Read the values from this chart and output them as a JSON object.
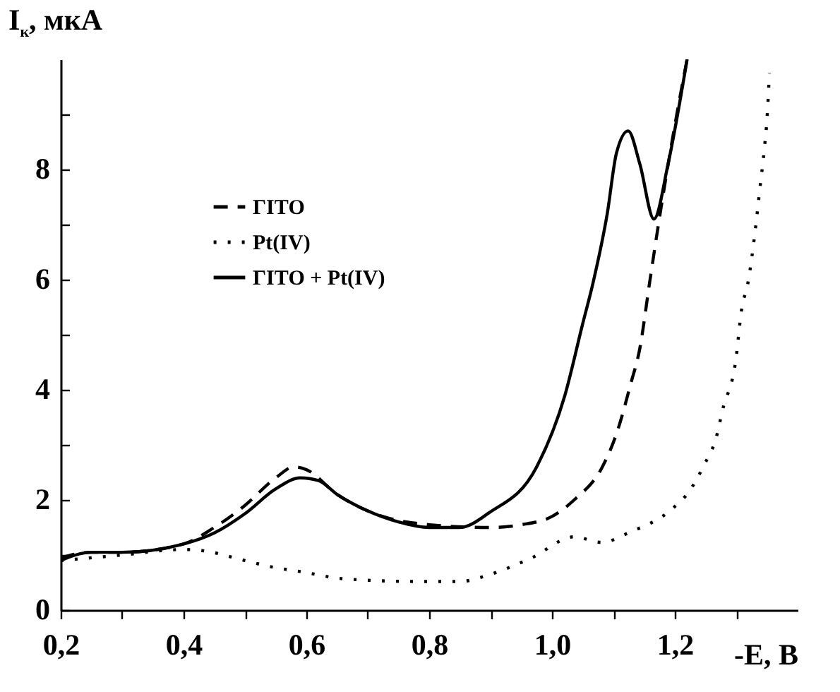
{
  "chart_data": {
    "type": "line",
    "xlabel": "-E, B",
    "ylabel": "I$_{к}$, мкА",
    "xlim": [
      0.2,
      1.4
    ],
    "ylim": [
      0,
      10
    ],
    "xticks": [
      {
        "value": 0.2,
        "label": "0,2"
      },
      {
        "value": 0.3,
        "label": null
      },
      {
        "value": 0.4,
        "label": "0,4"
      },
      {
        "value": 0.5,
        "label": null
      },
      {
        "value": 0.6,
        "label": "0,6"
      },
      {
        "value": 0.7,
        "label": null
      },
      {
        "value": 0.8,
        "label": "0,8"
      },
      {
        "value": 0.9,
        "label": null
      },
      {
        "value": 1.0,
        "label": "1,0"
      },
      {
        "value": 1.1,
        "label": null
      },
      {
        "value": 1.2,
        "label": "1,2"
      },
      {
        "value": 1.3,
        "label": null
      }
    ],
    "yticks": [
      0,
      {
        "value": 1,
        "label": null
      },
      2,
      {
        "value": 3,
        "label": null
      },
      4,
      {
        "value": 5,
        "label": null
      },
      6,
      {
        "value": 7,
        "label": null
      },
      8,
      {
        "value": 9,
        "label": null
      }
    ],
    "legend": "top left",
    "grid": false,
    "marker": "none",
    "series": [
      {
        "name": "ГІТО",
        "color": "#000000",
        "line_style": "dashed",
        "x": [
          0.2,
          0.25,
          0.3,
          0.4,
          0.45,
          0.5,
          0.55,
          0.58,
          0.6,
          0.65,
          0.7,
          0.8,
          0.9,
          0.95,
          1.0,
          1.036,
          1.082,
          1.105,
          1.128,
          1.143,
          1.159,
          1.174,
          1.2,
          1.22
        ],
        "values": [
          0.95,
          1.05,
          1.05,
          1.2,
          1.5,
          1.9,
          2.4,
          2.6,
          2.55,
          2.1,
          1.8,
          1.55,
          1.5,
          1.55,
          1.7,
          2.0,
          2.6,
          3.2,
          4.1,
          4.75,
          5.95,
          7.05,
          8.8,
          10.0
        ]
      },
      {
        "name": "Pt(IV)",
        "color": "#000000",
        "line_style": "dotted",
        "x": [
          0.2,
          0.3,
          0.4,
          0.43,
          0.5,
          0.545,
          0.59,
          0.66,
          0.78,
          0.85,
          0.9,
          0.967,
          1.036,
          1.08,
          1.128,
          1.197,
          1.223,
          1.246,
          1.269,
          1.277,
          1.3,
          1.308,
          1.32,
          1.331,
          1.338,
          1.346,
          1.35,
          1.354
        ],
        "values": [
          0.9,
          1.0,
          1.1,
          1.08,
          0.9,
          0.78,
          0.7,
          0.57,
          0.52,
          0.52,
          0.65,
          0.95,
          1.33,
          1.23,
          1.42,
          1.85,
          2.15,
          2.6,
          3.2,
          3.6,
          4.6,
          5.4,
          6.0,
          6.9,
          7.6,
          8.4,
          8.9,
          9.75
        ]
      },
      {
        "name": "ГІТО + Pt(IV)",
        "color": "#000000",
        "line_style": "solid",
        "x": [
          0.2,
          0.25,
          0.3,
          0.4,
          0.45,
          0.5,
          0.55,
          0.59,
          0.62,
          0.65,
          0.7,
          0.75,
          0.8,
          0.85,
          0.898,
          0.975,
          1.021,
          1.05,
          1.067,
          1.09,
          1.105,
          1.124,
          1.143,
          1.166,
          1.189,
          1.22
        ],
        "values": [
          0.9,
          1.05,
          1.05,
          1.2,
          1.4,
          1.75,
          2.2,
          2.4,
          2.35,
          2.1,
          1.8,
          1.6,
          1.5,
          1.5,
          1.77,
          2.6,
          3.9,
          5.2,
          5.95,
          7.2,
          8.3,
          8.7,
          8.1,
          7.1,
          8.1,
          10.0
        ]
      }
    ]
  }
}
